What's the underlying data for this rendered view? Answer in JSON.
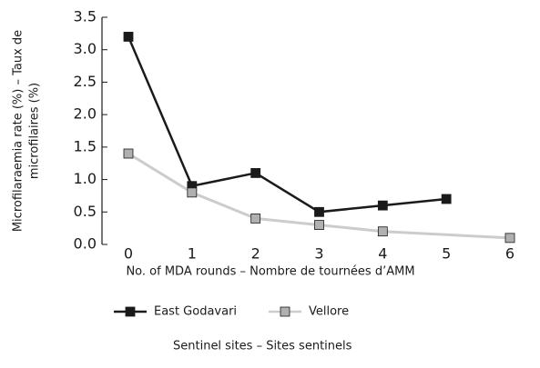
{
  "chart_data": {
    "type": "line",
    "y_label": [
      "Microfilaraemia rate (%) – Taux de",
      "microfilaires (%)"
    ],
    "x_label": "No. of MDA rounds – Nombre de tournées d’AMM",
    "legend_title": "Sentinel sites – Sites sentinels",
    "xlim": [
      0,
      6
    ],
    "xticks": [
      0,
      1,
      2,
      3,
      4,
      5,
      6
    ],
    "ylim": [
      0,
      3.5
    ],
    "yticks": [
      {
        "value": 0,
        "label": "0.0"
      },
      0.5,
      {
        "value": 1,
        "label": "1.0"
      },
      1.5,
      {
        "value": 2,
        "label": "2.0"
      },
      2.5,
      {
        "value": 3,
        "label": "3.0"
      },
      3.5
    ],
    "series": [
      {
        "name": "East Godavari",
        "color": "#1a1a1a",
        "marker_color": "#1a1a1a",
        "x": [
          0,
          1,
          2,
          3,
          4,
          5
        ],
        "values": [
          3.2,
          0.9,
          1.1,
          0.5,
          0.6,
          0.7
        ]
      },
      {
        "name": "Vellore",
        "color": "#cccccc",
        "marker_color": "#b0b0b0",
        "x": [
          0,
          1,
          2,
          3,
          4,
          6
        ],
        "values": [
          1.4,
          0.8,
          0.4,
          0.3,
          0.2,
          0.1
        ]
      }
    ]
  }
}
